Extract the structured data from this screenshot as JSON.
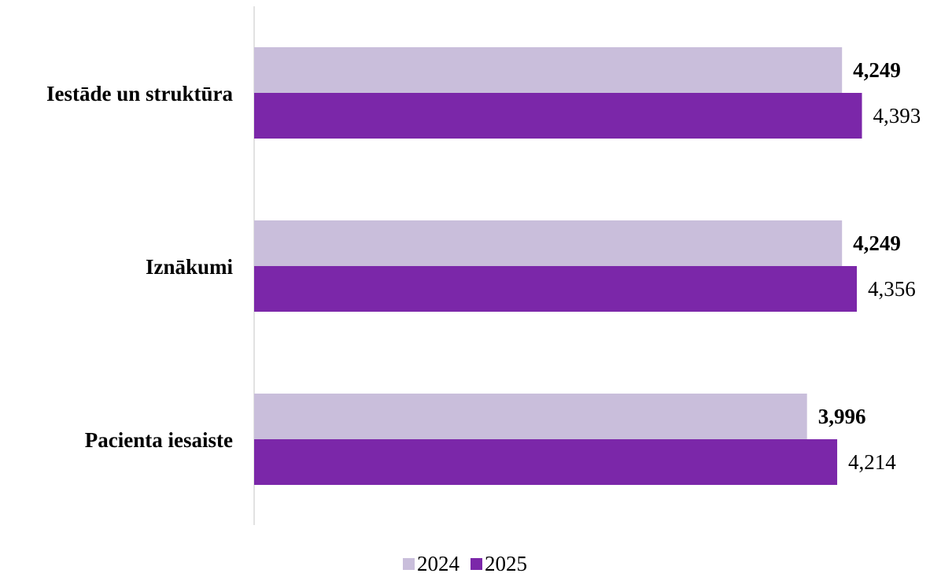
{
  "chart_data": {
    "type": "bar",
    "orientation": "horizontal",
    "categories": [
      "Iestāde un struktūra",
      "Iznākumi",
      "Pacienta iesaiste"
    ],
    "series": [
      {
        "name": "2024",
        "color": "#c9bedb",
        "values": [
          4.249,
          4.249,
          3.996
        ],
        "labels": [
          "4,249",
          "4,249",
          "3,996"
        ],
        "label_weight": "bold"
      },
      {
        "name": "2025",
        "color": "#7b27a9",
        "values": [
          4.393,
          4.356,
          4.214
        ],
        "labels": [
          "4,393",
          "4,356",
          "4,214"
        ],
        "label_weight": "normal"
      }
    ],
    "title": "",
    "xlabel": "",
    "ylabel": "",
    "xlim": [
      0,
      5
    ],
    "grid": false,
    "legend_position": "bottom",
    "axis_color": "#d9d9d9"
  },
  "legend": {
    "items": [
      {
        "label": "2024",
        "color": "#c9bedb"
      },
      {
        "label": "2025",
        "color": "#7b27a9"
      }
    ]
  }
}
